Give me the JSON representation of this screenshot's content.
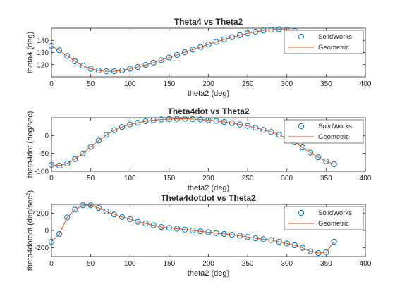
{
  "colors": {
    "solidworks": "#0072BD",
    "geometric": "#D95319",
    "axes": "#262626"
  },
  "chart_data": [
    {
      "type": "line",
      "title": "Theta4 vs Theta2",
      "xlabel": "theta2 (deg)",
      "ylabel": "theta4 (deg)",
      "xlim": [
        0,
        400
      ],
      "ylim": [
        110,
        150
      ],
      "xticks": [
        0,
        50,
        100,
        150,
        200,
        250,
        300,
        350,
        400
      ],
      "yticks": [
        120,
        130,
        140
      ],
      "legend": "top-right",
      "grid": false,
      "x": [
        0,
        10,
        20,
        30,
        40,
        50,
        60,
        70,
        80,
        90,
        100,
        110,
        120,
        130,
        140,
        150,
        160,
        170,
        180,
        190,
        200,
        210,
        220,
        230,
        240,
        250,
        260,
        270,
        280,
        290,
        300,
        310,
        320,
        330,
        340,
        350,
        360
      ],
      "series": [
        {
          "name": "SolidWorks",
          "style": "marker",
          "values": [
            135.5,
            131.8,
            127.2,
            122.8,
            119.2,
            116.6,
            115.2,
            114.6,
            114.6,
            115.3,
            116.6,
            118.1,
            119.8,
            121.7,
            123.7,
            125.9,
            128.0,
            130.2,
            132.4,
            134.6,
            136.7,
            138.7,
            140.8,
            142.6,
            144.3,
            145.8,
            147.1,
            148.1,
            148.8,
            149.1,
            148.8,
            147.6,
            145.7,
            143.3,
            140.2,
            137.2,
            135.5
          ]
        },
        {
          "name": "Geometric",
          "style": "line",
          "values": [
            135.5,
            131.8,
            127.2,
            122.8,
            119.2,
            116.6,
            115.2,
            114.6,
            114.6,
            115.3,
            116.6,
            118.1,
            119.8,
            121.7,
            123.7,
            125.9,
            128.0,
            130.2,
            132.4,
            134.6,
            136.7,
            138.7,
            140.8,
            142.6,
            144.3,
            145.8,
            147.1,
            148.1,
            148.8,
            149.1,
            148.8,
            147.6,
            145.7,
            143.3,
            140.2,
            137.2,
            135.5
          ]
        }
      ]
    },
    {
      "type": "line",
      "title": "Theta4dot vs Theta2",
      "xlabel": "theta2 (deg)",
      "ylabel": "theta4dot (deg/sec)",
      "xlim": [
        0,
        400
      ],
      "ylim": [
        -100,
        50
      ],
      "xticks": [
        0,
        50,
        100,
        150,
        200,
        250,
        300,
        350,
        400
      ],
      "yticks": [
        -100,
        -50,
        0
      ],
      "legend": "top-right",
      "grid": false,
      "x": [
        0,
        10,
        20,
        30,
        40,
        50,
        60,
        70,
        80,
        90,
        100,
        110,
        120,
        130,
        140,
        150,
        160,
        170,
        180,
        190,
        200,
        210,
        220,
        230,
        240,
        250,
        260,
        270,
        280,
        290,
        300,
        310,
        320,
        330,
        340,
        350,
        360
      ],
      "series": [
        {
          "name": "SolidWorks",
          "style": "marker",
          "values": [
            -82,
            -84,
            -78,
            -66,
            -50,
            -32,
            -14,
            2,
            15,
            24,
            31,
            36,
            40,
            43,
            45,
            46,
            47,
            47,
            46,
            45,
            43,
            41,
            38,
            35,
            31,
            27,
            22,
            16,
            10,
            2,
            -7,
            -19,
            -33,
            -48,
            -61,
            -72,
            -80
          ]
        },
        {
          "name": "Geometric",
          "style": "line",
          "values": [
            -82,
            -84,
            -78,
            -66,
            -50,
            -32,
            -14,
            2,
            15,
            24,
            31,
            36,
            40,
            43,
            45,
            46,
            47,
            47,
            46,
            45,
            43,
            41,
            38,
            35,
            31,
            27,
            22,
            16,
            10,
            2,
            -7,
            -19,
            -33,
            -48,
            -61,
            -72,
            -80
          ]
        }
      ]
    },
    {
      "type": "line",
      "title": "Theta4dotdot vs Theta2",
      "xlabel": "theta2 (deg)",
      "ylabel": "theta4dotdot (deg/sec",
      "ylabel_sup": "2",
      "ylabel_end": ")",
      "xlim": [
        0,
        400
      ],
      "ylim": [
        -300,
        300
      ],
      "xticks": [
        0,
        50,
        100,
        150,
        200,
        250,
        300,
        350,
        400
      ],
      "yticks": [
        -200,
        0,
        200
      ],
      "legend": "top-right",
      "grid": false,
      "x": [
        0,
        10,
        20,
        30,
        40,
        50,
        60,
        70,
        80,
        90,
        100,
        110,
        120,
        130,
        140,
        150,
        160,
        170,
        180,
        190,
        200,
        210,
        220,
        230,
        240,
        250,
        260,
        270,
        280,
        290,
        300,
        310,
        320,
        330,
        340,
        350,
        360
      ],
      "series": [
        {
          "name": "SolidWorks",
          "style": "marker",
          "values": [
            -130,
            -40,
            150,
            240,
            290,
            290,
            260,
            220,
            185,
            155,
            130,
            100,
            80,
            60,
            40,
            30,
            20,
            10,
            0,
            -10,
            -20,
            -30,
            -40,
            -50,
            -60,
            -75,
            -90,
            -100,
            -110,
            -130,
            -150,
            -170,
            -200,
            -240,
            -260,
            -250,
            -130
          ]
        },
        {
          "name": "Geometric",
          "style": "line",
          "values": [
            -130,
            -40,
            150,
            240,
            290,
            290,
            260,
            220,
            185,
            155,
            130,
            100,
            80,
            60,
            40,
            30,
            20,
            10,
            0,
            -10,
            -20,
            -30,
            -40,
            -50,
            -60,
            -75,
            -90,
            -100,
            -110,
            -130,
            -150,
            -170,
            -200,
            -240,
            -260,
            -250,
            -130
          ]
        }
      ]
    }
  ]
}
